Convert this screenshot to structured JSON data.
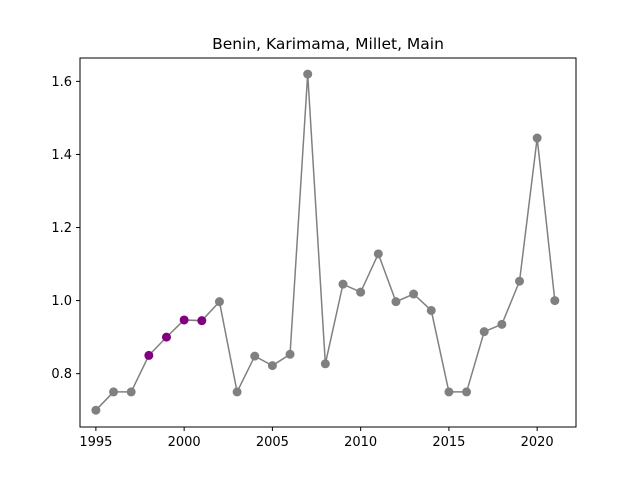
{
  "chart_data": {
    "type": "line",
    "title": "Benin, Karimama, Millet, Main",
    "xlabel": "",
    "ylabel": "",
    "xlim": [
      1994.1,
      2022.2
    ],
    "ylim": [
      0.654,
      1.664
    ],
    "xticks": [
      1995,
      2000,
      2005,
      2010,
      2015,
      2020
    ],
    "yticks": [
      0.8,
      1.0,
      1.2,
      1.4,
      1.6
    ],
    "ytick_labels": [
      "0.8",
      "1.0",
      "1.2",
      "1.4",
      "1.6"
    ],
    "grid": false,
    "line_color": "#808080",
    "highlight_color": "#800080",
    "series": [
      {
        "x": [
          1995,
          1996,
          1997,
          1998,
          1999,
          2000,
          2001,
          2002,
          2003,
          2004,
          2005,
          2006,
          2007,
          2008,
          2009,
          2010,
          2011,
          2012,
          2013,
          2014,
          2015,
          2016,
          2017,
          2018,
          2019,
          2020,
          2021
        ],
        "y": [
          0.7,
          0.75,
          0.75,
          0.85,
          0.9,
          0.947,
          0.945,
          0.997,
          0.75,
          0.848,
          0.822,
          0.853,
          1.62,
          0.827,
          1.045,
          1.023,
          1.128,
          0.997,
          1.018,
          0.973,
          0.75,
          0.75,
          0.915,
          0.935,
          1.053,
          1.445,
          1.0
        ],
        "highlighted": [
          1998,
          1999,
          2000,
          2001
        ]
      }
    ]
  }
}
